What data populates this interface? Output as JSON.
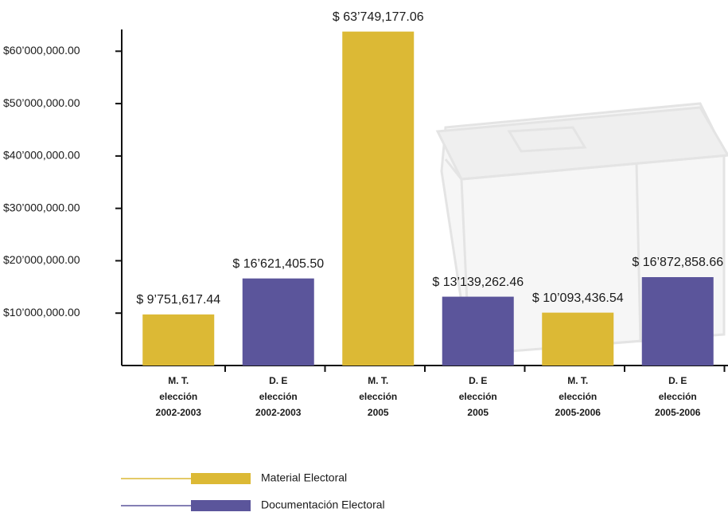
{
  "chart_data": {
    "type": "bar",
    "categories": [
      [
        "M. T.",
        "elección",
        "2002-2003"
      ],
      [
        "D. E",
        "elección",
        "2002-2003"
      ],
      [
        "M. T.",
        "elección",
        "2005"
      ],
      [
        "D. E",
        "elección",
        "2005"
      ],
      [
        "M. T.",
        "elección",
        "2005-2006"
      ],
      [
        "D. E",
        "elección",
        "2005-2006"
      ]
    ],
    "series": [
      {
        "name": "Material Electoral",
        "color": "#dcb935",
        "values": [
          9751617.44,
          null,
          63749177.06,
          null,
          10093436.54,
          null
        ],
        "value_labels": [
          "$ 9’751,617.44",
          null,
          "$ 63’749,177.06",
          null,
          "$ 10’093,436.54",
          null
        ]
      },
      {
        "name": "Documentación Electoral",
        "color": "#5b559b",
        "values": [
          null,
          16621405.5,
          null,
          13139262.46,
          null,
          16872858.66
        ],
        "value_labels": [
          null,
          "$ 16’621,405.50",
          null,
          "$ 13’139,262.46",
          null,
          "$ 16’872,858.66"
        ]
      }
    ],
    "ylim": [
      0,
      64000000
    ],
    "yticks": [
      {
        "value": 10000000,
        "label": "$10’000,000.00"
      },
      {
        "value": 20000000,
        "label": "$20’000,000.00"
      },
      {
        "value": 30000000,
        "label": "$30’000,000.00"
      },
      {
        "value": 40000000,
        "label": "$40’000,000.00"
      },
      {
        "value": 50000000,
        "label": "$50’000,000.00"
      },
      {
        "value": 60000000,
        "label": "$60’000,000.00"
      }
    ]
  }
}
